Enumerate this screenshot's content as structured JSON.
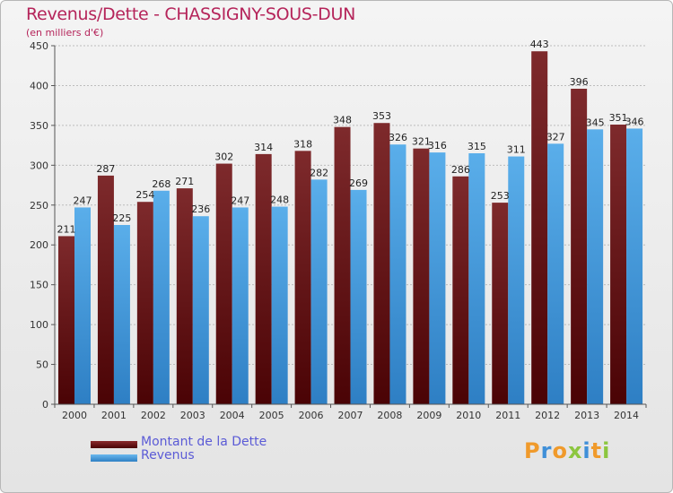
{
  "header": {
    "title": "Revenus/Dette - CHASSIGNY-SOUS-DUN",
    "subtitle": "(en milliers d'€)"
  },
  "legend": {
    "items": [
      {
        "label": "Montant de la Dette",
        "color": "#6e1416"
      },
      {
        "label": "Revenus",
        "color": "#4ea0e0"
      }
    ]
  },
  "brand": {
    "letters": [
      {
        "ch": "P",
        "color": "#f09a2b"
      },
      {
        "ch": "r",
        "color": "#3f8fd8"
      },
      {
        "ch": "o",
        "color": "#f09a2b"
      },
      {
        "ch": "x",
        "color": "#8cc63f"
      },
      {
        "ch": "i",
        "color": "#3f8fd8"
      },
      {
        "ch": "t",
        "color": "#f09a2b"
      },
      {
        "ch": "i",
        "color": "#8cc63f"
      }
    ]
  },
  "chart_data": {
    "type": "bar",
    "title": "Revenus/Dette - CHASSIGNY-SOUS-DUN",
    "ylabel": "(en milliers d'€)",
    "xlabel": "",
    "categories": [
      "2000",
      "2001",
      "2002",
      "2003",
      "2004",
      "2005",
      "2006",
      "2007",
      "2008",
      "2009",
      "2010",
      "2011",
      "2012",
      "2013",
      "2014"
    ],
    "series": [
      {
        "name": "Montant de la Dette",
        "color": "#6e1416",
        "values": [
          211,
          287,
          254,
          271,
          302,
          314,
          318,
          348,
          353,
          321,
          286,
          253,
          443,
          396,
          351
        ]
      },
      {
        "name": "Revenus",
        "color": "#4ea0e0",
        "values": [
          247,
          225,
          268,
          236,
          247,
          248,
          282,
          269,
          326,
          316,
          315,
          311,
          327,
          345,
          346
        ]
      }
    ],
    "ylim": [
      0,
      450
    ],
    "yticks": [
      0,
      50,
      100,
      150,
      200,
      250,
      300,
      350,
      400,
      450
    ],
    "grid": true,
    "legend_position": "bottom-left"
  }
}
